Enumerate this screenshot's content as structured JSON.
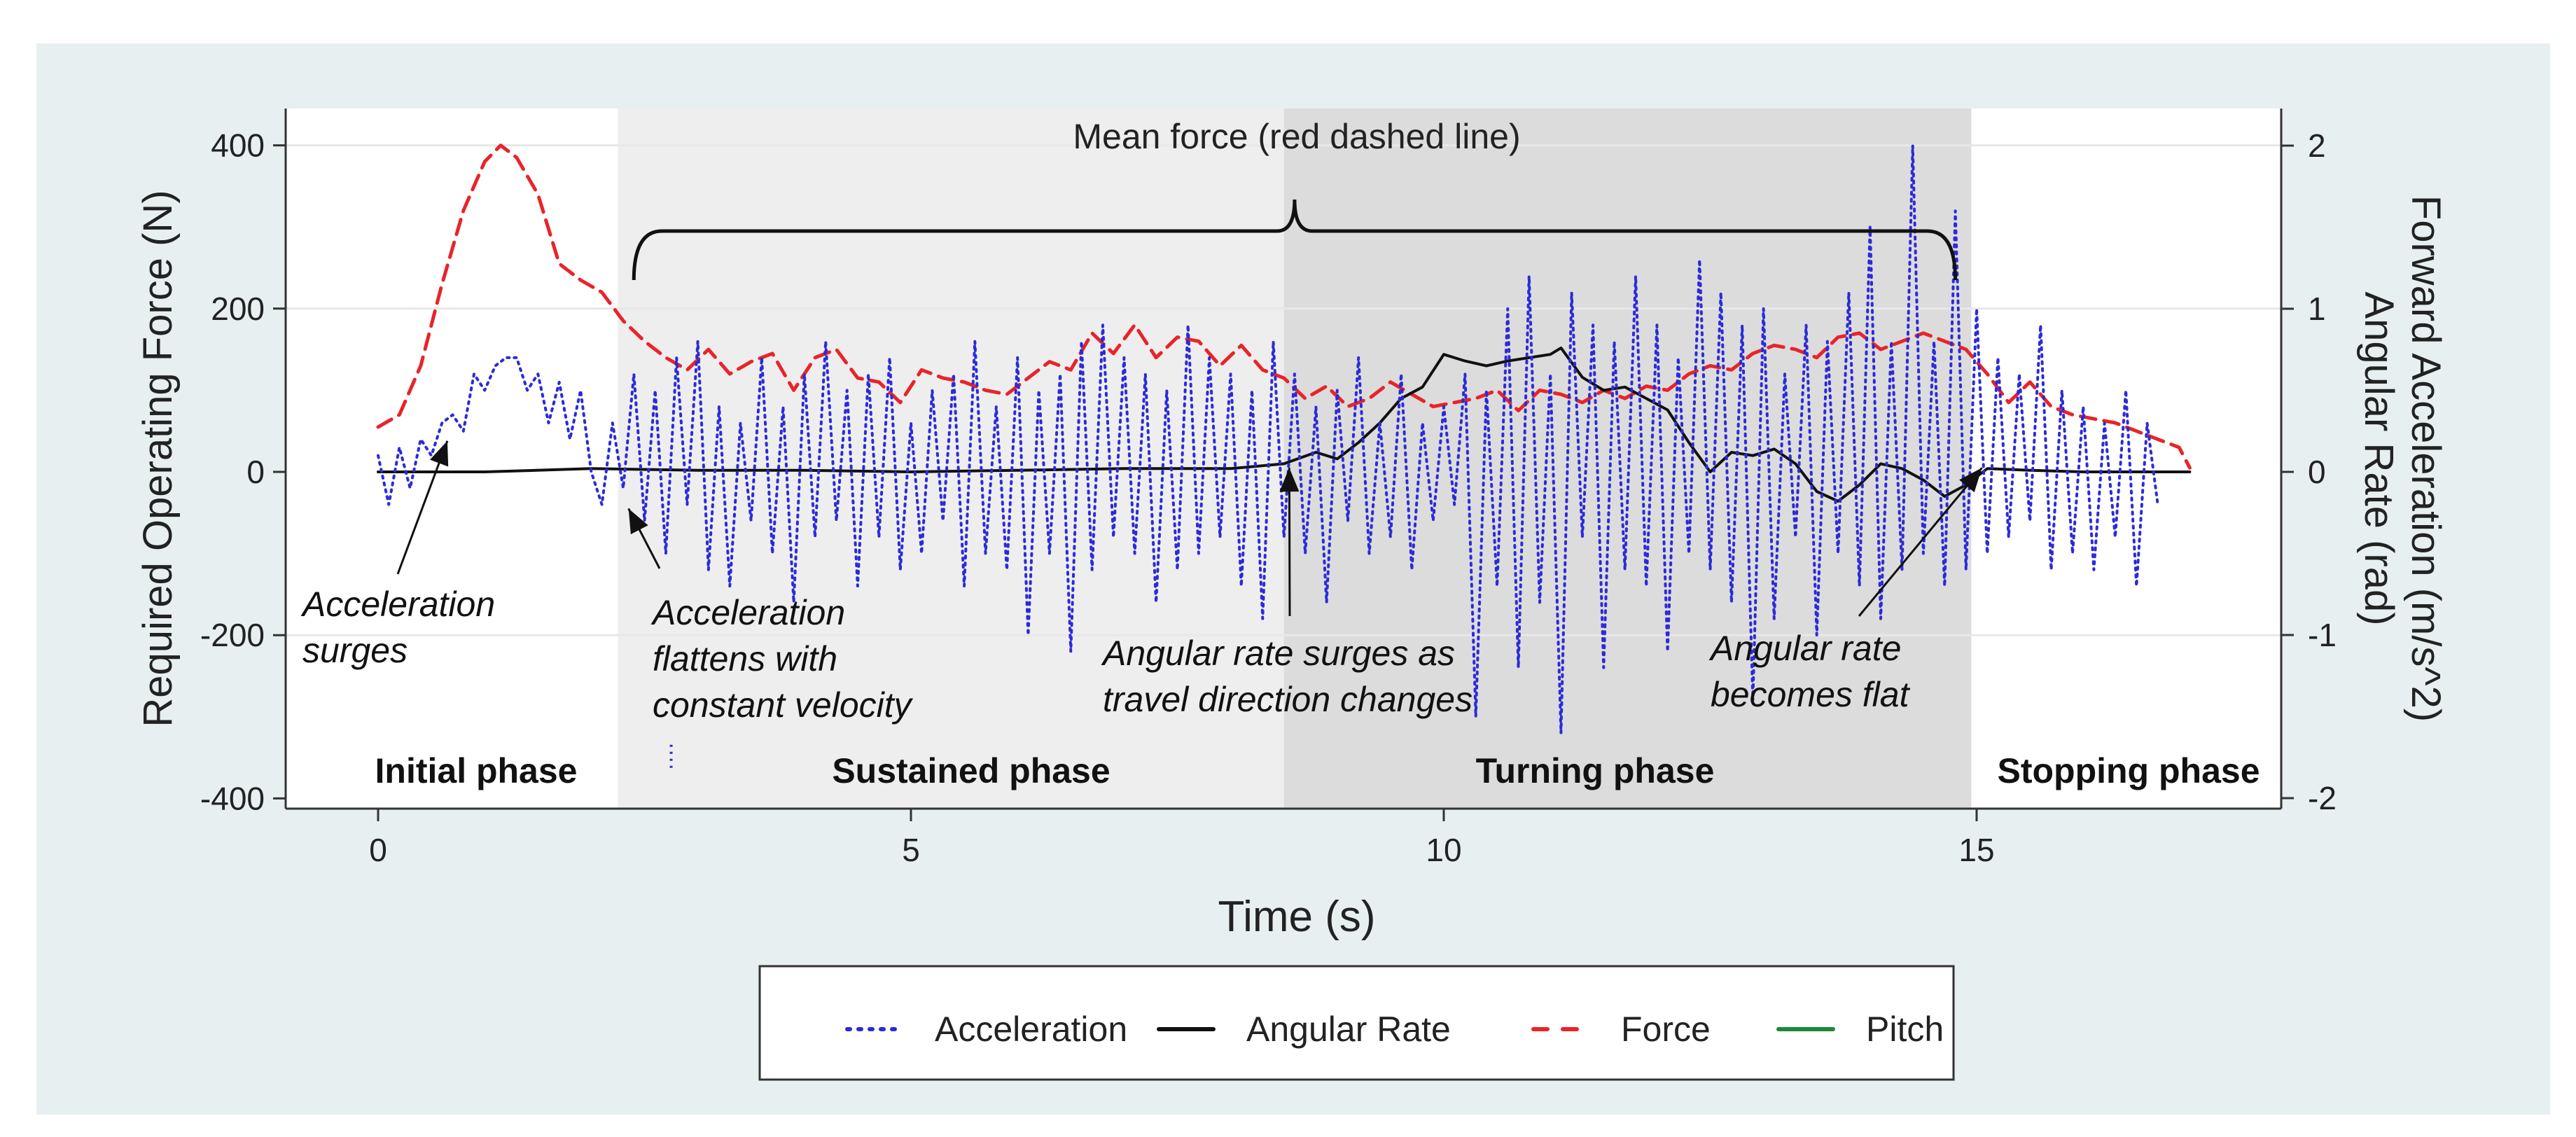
{
  "colors": {
    "page_background": "#ffffff",
    "outer_panel": "#e7eff1",
    "plot_background": "#ffffff",
    "sustained_shade": "#eeeeee",
    "turning_shade": "#dcdcdc",
    "acceleration": "#2b2bd9",
    "angular_rate": "#111111",
    "force": "#e8242a",
    "pitch": "#1a8a3a",
    "grid": "#e8e8e8",
    "text": "#222222"
  },
  "chart_data": {
    "type": "line",
    "xlabel": "Time (s)",
    "ylabel_left": "Required Operating Force (N)",
    "ylabel_right_line1": "Forward Acceleration (m/s^2)",
    "ylabel_right_line2": "Angular Rate (rad)",
    "xlim": [
      -0.85,
      17.85
    ],
    "ylim_left": [
      -400,
      440
    ],
    "ylim_right": [
      -2,
      2.2
    ],
    "x_ticks": [
      0,
      5,
      10,
      15
    ],
    "x_tick_labels": [
      "0",
      "5",
      "10",
      "15"
    ],
    "y_left_ticks": [
      400,
      200,
      0,
      -200,
      -400
    ],
    "y_left_tick_labels": [
      "400",
      "200",
      "0",
      "-200",
      "-400"
    ],
    "y_right_ticks": [
      2,
      1,
      0,
      -1,
      -2
    ],
    "y_right_tick_labels": [
      "2",
      "1",
      "0",
      "-1",
      "-2"
    ],
    "phases": [
      {
        "name": "Initial phase",
        "start": -0.85,
        "end": 2.25,
        "shade": "none"
      },
      {
        "name": "Sustained phase",
        "start": 2.25,
        "end": 8.5,
        "shade": "light"
      },
      {
        "name": "Turning phase",
        "start": 8.5,
        "end": 14.95,
        "shade": "dark"
      },
      {
        "name": "Stopping phase",
        "start": 14.95,
        "end": 17.85,
        "shade": "none"
      }
    ],
    "mean_force_label": "Mean force (red dashed line)",
    "mean_force_brace": {
      "start": 2.4,
      "end": 14.8,
      "level_N": 295
    },
    "annotations": [
      {
        "lines": [
          "Acceleration",
          "surges"
        ],
        "pointer": [
          0.65,
          38
        ]
      },
      {
        "lines": [
          "Acceleration",
          "flattens with",
          "constant velocity"
        ],
        "pointer": [
          2.35,
          -45
        ]
      },
      {
        "lines": [
          "Angular rate surges as",
          "travel direction changes"
        ],
        "pointer": [
          8.55,
          5
        ]
      },
      {
        "lines": [
          "Angular rate",
          "becomes flat"
        ],
        "pointer": [
          15.05,
          5
        ]
      }
    ],
    "series": [
      {
        "name": "Force",
        "axis": "left",
        "style": "dashed",
        "x": [
          0,
          0.2,
          0.4,
          0.6,
          0.8,
          1.0,
          1.15,
          1.3,
          1.5,
          1.7,
          1.9,
          2.1,
          2.3,
          2.5,
          2.7,
          2.9,
          3.1,
          3.3,
          3.5,
          3.7,
          3.9,
          4.1,
          4.3,
          4.5,
          4.7,
          4.9,
          5.1,
          5.3,
          5.5,
          5.7,
          5.9,
          6.1,
          6.3,
          6.5,
          6.7,
          6.9,
          7.1,
          7.3,
          7.5,
          7.7,
          7.9,
          8.1,
          8.3,
          8.5,
          8.7,
          8.9,
          9.1,
          9.3,
          9.5,
          9.7,
          9.9,
          10.1,
          10.3,
          10.5,
          10.7,
          10.9,
          11.1,
          11.3,
          11.5,
          11.7,
          11.9,
          12.1,
          12.3,
          12.5,
          12.7,
          12.9,
          13.1,
          13.3,
          13.5,
          13.7,
          13.9,
          14.1,
          14.3,
          14.5,
          14.7,
          14.9,
          15.1,
          15.3,
          15.5,
          15.7,
          15.9,
          16.1,
          16.3,
          16.5,
          16.7,
          16.9,
          17.0
        ],
        "values": [
          55,
          70,
          130,
          230,
          320,
          380,
          400,
          385,
          340,
          255,
          235,
          220,
          185,
          160,
          140,
          125,
          150,
          120,
          135,
          145,
          100,
          140,
          150,
          115,
          110,
          85,
          125,
          115,
          110,
          100,
          95,
          115,
          135,
          125,
          170,
          145,
          180,
          140,
          165,
          160,
          130,
          155,
          125,
          115,
          90,
          105,
          80,
          90,
          110,
          95,
          80,
          85,
          90,
          100,
          75,
          100,
          95,
          85,
          100,
          90,
          105,
          100,
          120,
          130,
          125,
          145,
          155,
          150,
          140,
          165,
          170,
          150,
          160,
          170,
          160,
          150,
          120,
          85,
          110,
          80,
          70,
          65,
          60,
          50,
          40,
          30,
          5
        ]
      },
      {
        "name": "Angular Rate",
        "axis": "right",
        "style": "solid",
        "x": [
          0,
          1,
          2,
          3,
          4,
          5,
          6,
          7,
          8,
          8.5,
          8.8,
          9.0,
          9.2,
          9.4,
          9.6,
          9.8,
          10.0,
          10.2,
          10.4,
          10.6,
          10.8,
          11.0,
          11.1,
          11.3,
          11.5,
          11.7,
          11.9,
          12.1,
          12.3,
          12.5,
          12.7,
          12.9,
          13.1,
          13.3,
          13.5,
          13.7,
          13.9,
          14.1,
          14.3,
          14.5,
          14.7,
          14.9,
          15.1,
          15.5,
          16.0,
          16.5,
          17.0
        ],
        "values": [
          0,
          0,
          0.02,
          0.01,
          0.01,
          0,
          0.01,
          0.02,
          0.02,
          0.05,
          0.12,
          0.08,
          0.18,
          0.3,
          0.45,
          0.52,
          0.72,
          0.68,
          0.65,
          0.68,
          0.7,
          0.72,
          0.76,
          0.58,
          0.5,
          0.52,
          0.45,
          0.38,
          0.18,
          0.0,
          0.12,
          0.1,
          0.14,
          0.05,
          -0.12,
          -0.18,
          -0.08,
          0.05,
          0.02,
          -0.05,
          -0.15,
          -0.08,
          0.02,
          0.01,
          0,
          0,
          0
        ]
      },
      {
        "name": "Acceleration",
        "axis": "right",
        "style": "dotted",
        "x_start": 0,
        "x_step": 0.1,
        "values": [
          0.1,
          -0.2,
          0.15,
          -0.1,
          0.2,
          0.1,
          0.3,
          0.35,
          0.25,
          0.6,
          0.5,
          0.65,
          0.7,
          0.7,
          0.5,
          0.6,
          0.3,
          0.55,
          0.2,
          0.5,
          0.0,
          -0.2,
          0.3,
          -0.1,
          0.6,
          -0.3,
          0.5,
          -0.5,
          0.7,
          -0.2,
          0.8,
          -0.6,
          0.4,
          -0.7,
          0.3,
          -0.3,
          0.7,
          -0.5,
          0.4,
          -0.8,
          0.6,
          -0.4,
          0.8,
          -0.3,
          0.5,
          -0.7,
          0.6,
          -0.4,
          0.7,
          -0.6,
          0.3,
          -0.5,
          0.5,
          -0.3,
          0.6,
          -0.7,
          0.8,
          -0.5,
          0.4,
          -0.6,
          0.7,
          -1.0,
          0.5,
          -0.5,
          0.6,
          -1.1,
          0.8,
          -0.6,
          0.9,
          -0.4,
          0.7,
          -0.5,
          0.6,
          -0.8,
          0.5,
          -0.6,
          0.9,
          -0.5,
          0.7,
          -0.4,
          0.6,
          -0.7,
          0.5,
          -0.9,
          0.8,
          -0.4,
          0.6,
          -0.5,
          0.4,
          -0.8,
          0.5,
          -0.3,
          0.7,
          -0.5,
          0.3,
          -0.4,
          0.6,
          -0.6,
          0.3,
          -0.3,
          0.4,
          -0.2,
          0.6,
          -1.5,
          0.5,
          -0.7,
          1.0,
          -1.2,
          1.2,
          -0.8,
          0.6,
          -1.6,
          1.1,
          -0.4,
          0.9,
          -1.2,
          0.8,
          -0.6,
          1.2,
          -0.7,
          0.9,
          -1.1,
          0.7,
          -0.5,
          1.3,
          -0.6,
          1.1,
          -0.8,
          0.9,
          -1.4,
          1.0,
          -0.9,
          0.6,
          -0.4,
          0.9,
          -1.0,
          0.8,
          -0.5,
          1.1,
          -0.7,
          1.5,
          -0.9,
          0.8,
          -0.6,
          2.0,
          -0.5,
          0.8,
          -0.7,
          1.6,
          -0.6,
          1.0,
          -0.5,
          0.7,
          -0.4,
          0.6,
          -0.3,
          0.9,
          -0.6,
          0.5,
          -0.5,
          0.4,
          -0.6,
          0.3,
          -0.4,
          0.5,
          -0.7,
          0.3,
          -0.2
        ],
        "fixed_points": [
          [
            2.75,
            -1.75
          ]
        ]
      },
      {
        "name": "Pitch",
        "axis": "right",
        "style": "solid",
        "x": [],
        "values": []
      }
    ],
    "legend": {
      "position": "bottom-center",
      "entries": [
        {
          "name": "Acceleration",
          "style": "dotted"
        },
        {
          "name": "Angular Rate",
          "style": "solid"
        },
        {
          "name": "Force",
          "style": "dashed"
        },
        {
          "name": "Pitch",
          "style": "solid"
        }
      ]
    }
  }
}
